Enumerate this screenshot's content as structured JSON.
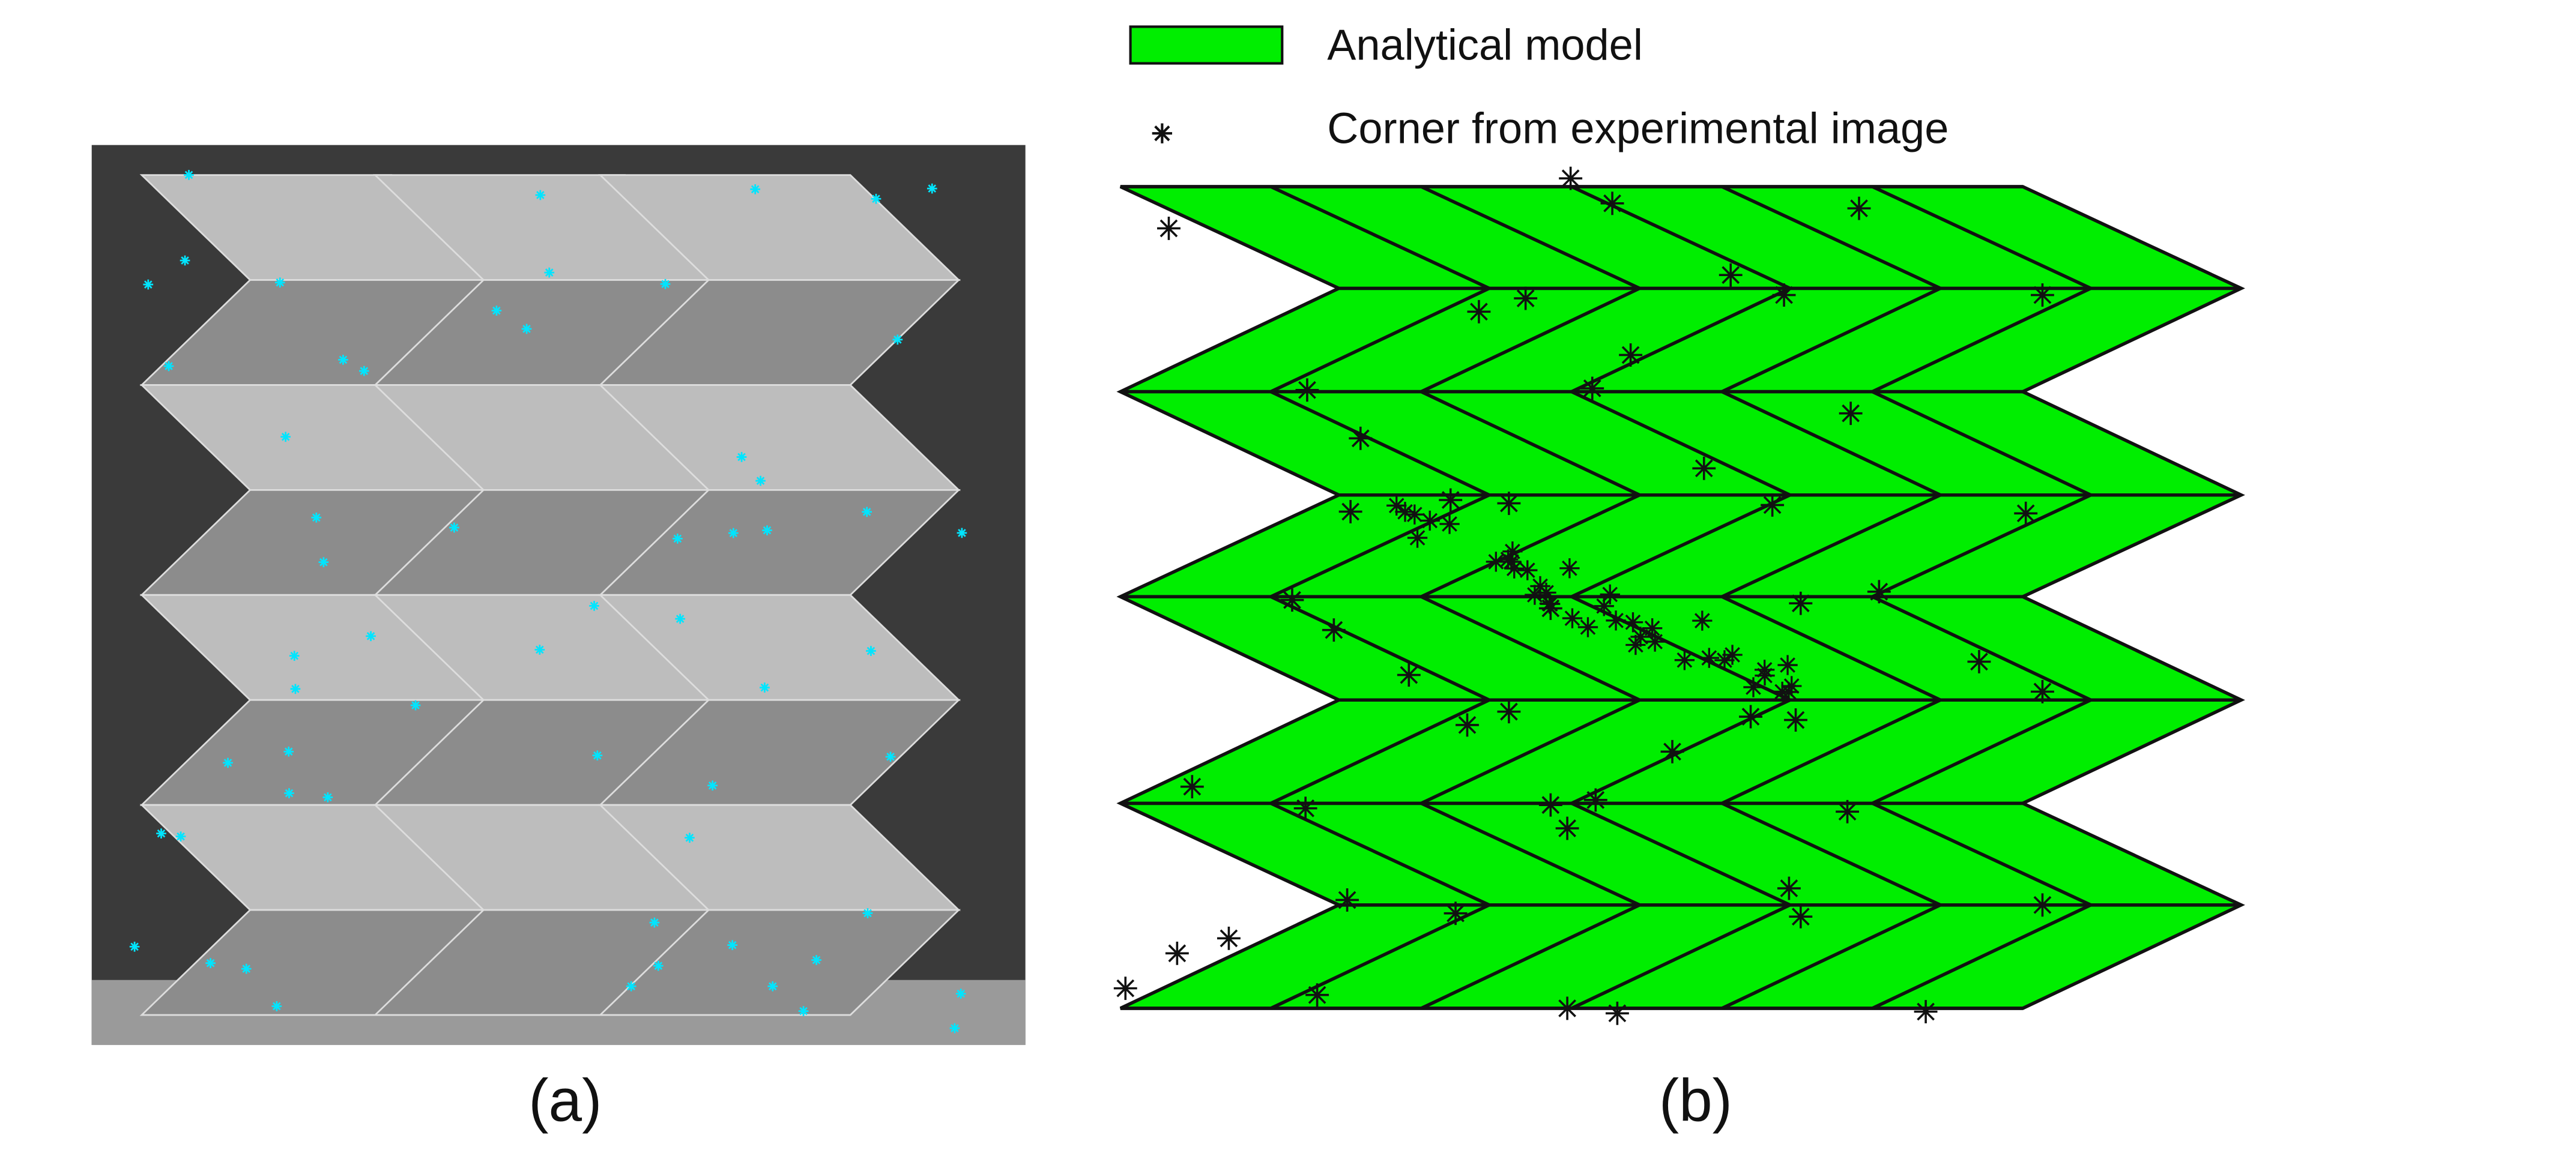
{
  "legend": [
    {
      "label": "Analytical model"
    },
    {
      "label": "Corner from experimental image"
    }
  ],
  "captions": {
    "a": "(a)",
    "b": "(b)"
  }
}
